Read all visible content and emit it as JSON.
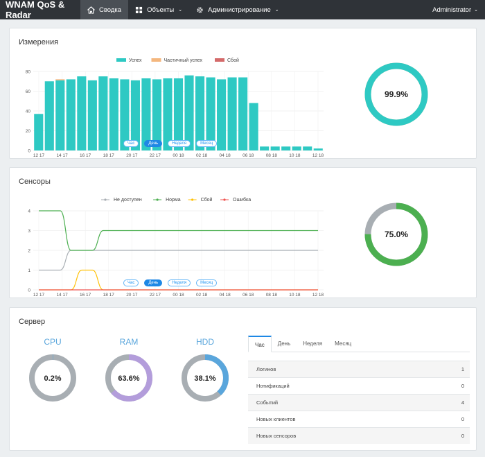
{
  "app": {
    "title": "WNAM QoS & Radar"
  },
  "nav": [
    {
      "label": "Сводка",
      "icon": "home-icon",
      "active": true
    },
    {
      "label": "Объекты",
      "icon": "grid-icon",
      "dropdown": true
    },
    {
      "label": "Администрирование",
      "icon": "gear-icon",
      "dropdown": true
    }
  ],
  "user": {
    "name": "Administrator"
  },
  "colors": {
    "accent": "#1e88e5",
    "success": "#2ec9c3",
    "partial": "#f4b77e",
    "fail": "#d46a6a",
    "norm": "#4caf50",
    "unavailable": "#a8aeb3",
    "sensor_fail": "#ffc107",
    "error": "#ef5350",
    "ram": "#b39ddb",
    "hdd": "#5aa6dc"
  },
  "measurements": {
    "title": "Измерения",
    "percent": "99.9%",
    "range_buttons": [
      "Час",
      "День",
      "Неделя",
      "Месяц"
    ],
    "active_range": "День"
  },
  "sensors": {
    "title": "Сенсоры",
    "percent": "75.0%",
    "range_buttons": [
      "Час",
      "День",
      "Неделя",
      "Месяц"
    ],
    "active_range": "День"
  },
  "server": {
    "title": "Сервер",
    "gauges": [
      {
        "label": "CPU",
        "value": "0.2%",
        "fraction": 0.002
      },
      {
        "label": "RAM",
        "value": "63.6%",
        "fraction": 0.636
      },
      {
        "label": "HDD",
        "value": "38.1%",
        "fraction": 0.381
      }
    ],
    "tabs": [
      "Час",
      "День",
      "Неделя",
      "Месяц"
    ],
    "active_tab": "Час",
    "stats": [
      {
        "label": "Логинов",
        "value": "1"
      },
      {
        "label": "Нотификаций",
        "value": "0"
      },
      {
        "label": "Событий",
        "value": "4"
      },
      {
        "label": "Новых клиентов",
        "value": "0"
      },
      {
        "label": "Новых сенсоров",
        "value": "0"
      }
    ]
  },
  "chart_data": [
    {
      "type": "bar",
      "legend": [
        "Успех",
        "Частичный успех",
        "Сбой"
      ],
      "legend_placement": "top",
      "ylim": [
        0,
        80
      ],
      "yticks": [
        "0",
        "20",
        "40",
        "60",
        "80"
      ],
      "x_tick_labels": [
        [
          "12 17",
          "Dec'20"
        ],
        [
          "14 17",
          "Dec'20"
        ],
        [
          "16 17",
          "Dec'20"
        ],
        [
          "18 17",
          "Dec'20"
        ],
        [
          "20 17",
          "Dec'20"
        ],
        [
          "22 17",
          "Dec'20"
        ],
        [
          "00 18",
          "Dec'20"
        ],
        [
          "02 18",
          "Dec'20"
        ],
        [
          "04 18",
          "Dec'20"
        ],
        [
          "06 18",
          "Dec'20"
        ],
        [
          "08 18",
          "Dec'20"
        ],
        [
          "10 18",
          "Dec'20"
        ],
        [
          "12 18",
          "Dec'20"
        ]
      ],
      "series": [
        {
          "name": "Успех",
          "values": [
            37,
            70,
            71,
            72,
            75,
            71,
            75,
            73,
            72,
            71,
            73,
            72,
            73,
            73,
            76,
            75,
            74,
            72,
            74,
            74,
            48,
            4,
            4,
            4,
            4,
            4,
            2
          ]
        },
        {
          "name": "Частичный успех",
          "values": [
            0,
            0,
            1,
            0,
            0,
            0,
            0,
            0,
            0,
            0,
            0,
            0,
            0,
            0,
            0,
            0,
            0,
            0,
            0,
            0,
            0,
            0,
            0,
            0,
            0,
            0,
            0
          ]
        },
        {
          "name": "Сбой",
          "values": [
            0,
            0,
            0,
            0,
            0,
            0,
            0,
            0,
            0,
            0,
            0,
            0,
            0,
            0,
            0,
            0,
            0,
            0,
            0,
            0,
            0,
            0,
            0,
            0,
            0,
            0,
            0
          ]
        }
      ],
      "grid": true
    },
    {
      "type": "line",
      "legend": [
        "Не доступен",
        "Норма",
        "Сбой",
        "Ошибка"
      ],
      "legend_placement": "top",
      "ylim": [
        0,
        4
      ],
      "yticks": [
        "0",
        "1",
        "2",
        "3",
        "4"
      ],
      "x_tick_labels": [
        [
          "12 17",
          "Dec'20"
        ],
        [
          "14 17",
          "Dec'20"
        ],
        [
          "16 17",
          "Dec'20"
        ],
        [
          "18 17",
          "Dec'20"
        ],
        [
          "20 17",
          "Dec'20"
        ],
        [
          "22 17",
          "Dec'20"
        ],
        [
          "00 18",
          "Dec'20"
        ],
        [
          "02 18",
          "Dec'20"
        ],
        [
          "04 18",
          "Dec'20"
        ],
        [
          "06 18",
          "Dec'20"
        ],
        [
          "08 18",
          "Dec'20"
        ],
        [
          "10 18",
          "Dec'20"
        ],
        [
          "12 18",
          "Dec'20"
        ]
      ],
      "x": [
        0,
        1,
        2,
        3,
        4,
        5,
        6,
        7,
        8,
        9,
        10,
        11,
        12,
        13,
        14,
        15,
        16,
        17,
        18,
        19,
        20,
        21,
        22,
        23,
        24,
        25,
        26
      ],
      "series": [
        {
          "name": "Не доступен",
          "values": [
            1,
            1,
            1,
            2,
            2,
            2,
            2,
            2,
            2,
            2,
            2,
            2,
            2,
            2,
            2,
            2,
            2,
            2,
            2,
            2,
            2,
            2,
            2,
            2,
            2,
            2,
            2
          ]
        },
        {
          "name": "Норма",
          "values": [
            4,
            4,
            4,
            2,
            2,
            2,
            3,
            3,
            3,
            3,
            3,
            3,
            3,
            3,
            3,
            3,
            3,
            3,
            3,
            3,
            3,
            3,
            3,
            3,
            3,
            3,
            3
          ]
        },
        {
          "name": "Сбой",
          "values": [
            0,
            0,
            0,
            0,
            1,
            1,
            0,
            0,
            0,
            0,
            0,
            0,
            0,
            0,
            0,
            0,
            0,
            0,
            0,
            0,
            0,
            0,
            0,
            0,
            0,
            0,
            0
          ]
        },
        {
          "name": "Ошибка",
          "values": [
            0,
            0,
            0,
            0,
            0,
            0,
            0,
            0,
            0,
            0,
            0,
            0,
            0,
            0,
            0,
            0,
            0,
            0,
            0,
            0,
            0,
            0,
            0,
            0,
            0,
            0,
            0
          ]
        }
      ],
      "grid": true
    },
    {
      "type": "pie",
      "labels": [
        "Успех",
        "Частичный успех"
      ],
      "values": [
        99.9,
        0.1
      ]
    },
    {
      "type": "pie",
      "labels": [
        "Норма",
        "Не доступен"
      ],
      "values": [
        75.0,
        25.0
      ]
    }
  ]
}
